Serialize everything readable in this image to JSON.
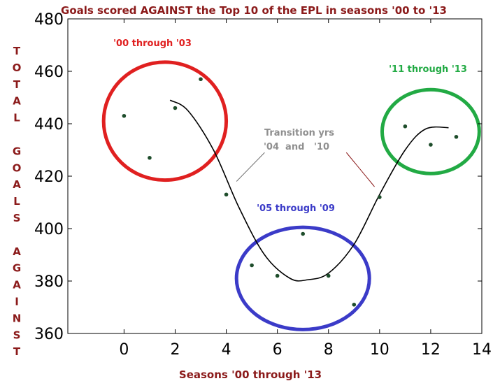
{
  "chart_data": {
    "type": "scatter",
    "title": "Goals scored AGAINST the Top 10 of the EPL in seasons '00 to '13",
    "xlabel": "Seasons '00 through '13",
    "ylabel": "TOTAL GOALS AGAINST",
    "ylabel_lines": [
      "T",
      "O",
      "T",
      "A",
      "L",
      "",
      "G",
      "O",
      "A",
      "L",
      "S",
      "",
      "A",
      "G",
      "A",
      "I",
      "N",
      "S",
      "T"
    ],
    "xlim": [
      -2.2,
      14
    ],
    "ylim": [
      360,
      480
    ],
    "xticks": [
      0,
      2,
      4,
      6,
      8,
      10,
      12,
      14
    ],
    "yticks": [
      360,
      380,
      400,
      420,
      440,
      460,
      480
    ],
    "grid": false,
    "series": [
      {
        "name": "Goals against",
        "x": [
          0,
          1,
          2,
          3,
          4,
          5,
          6,
          7,
          8,
          9,
          10,
          11,
          12,
          13
        ],
        "y": [
          443,
          427,
          446,
          457,
          413,
          386,
          382,
          398,
          382,
          371,
          412,
          439,
          432,
          435
        ],
        "color": "#1e4d2b"
      }
    ],
    "trend_curve": {
      "x": [
        1.8,
        2.5,
        3.5,
        4.5,
        5.5,
        6.5,
        7.2,
        8,
        9,
        10,
        11,
        11.8,
        12.7
      ],
      "y": [
        449,
        445,
        430,
        408,
        390,
        381,
        380.5,
        383,
        394,
        413,
        430,
        438,
        438.5
      ],
      "color": "#000000"
    },
    "annotations": [
      {
        "text": "'00 through '03",
        "color": "#e02020"
      },
      {
        "text": "'11 through '13",
        "color": "#22aa44"
      },
      {
        "text": "'05 through '09",
        "color": "#3b3bc8"
      },
      {
        "text": "Transition yrs",
        "color": "#8f8f8f"
      },
      {
        "text": "'04  and   '10",
        "color": "#8f8f8f"
      }
    ],
    "highlight_circles": [
      {
        "name": "early-seasons",
        "color": "#e02020",
        "cx": 1.6,
        "cy": 441,
        "rx": 2.4,
        "ry": 22.5
      },
      {
        "name": "late-seasons",
        "color": "#22aa44",
        "cx": 12.0,
        "cy": 437,
        "rx": 1.9,
        "ry": 16
      },
      {
        "name": "middle-seasons",
        "color": "#3b3bc8",
        "cx": 7.0,
        "cy": 381,
        "rx": 2.6,
        "ry": 19.5
      }
    ],
    "transition_lines": [
      {
        "from": [
          4.4,
          418
        ],
        "to": [
          5.5,
          429
        ],
        "color": "#707070"
      },
      {
        "from": [
          8.7,
          429
        ],
        "to": [
          9.8,
          416
        ],
        "color": "#8b1a1a"
      }
    ]
  }
}
